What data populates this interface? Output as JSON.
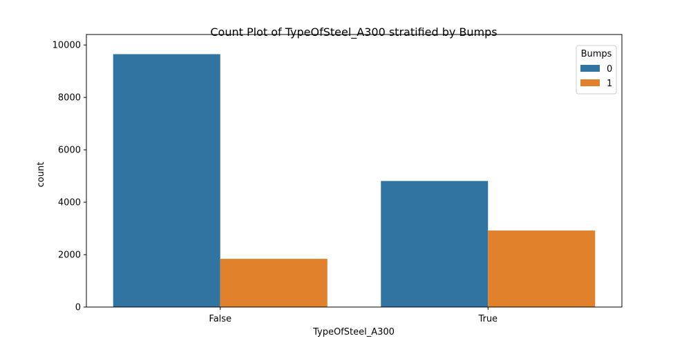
{
  "chart_data": {
    "type": "bar",
    "title": "Count Plot of TypeOfSteel_A300 stratified by Bumps",
    "xlabel": "TypeOfSteel_A300",
    "ylabel": "count",
    "categories": [
      "False",
      "True"
    ],
    "series": [
      {
        "name": "0",
        "values": [
          9650,
          4810
        ],
        "color": "#3274a1"
      },
      {
        "name": "1",
        "values": [
          1840,
          2920
        ],
        "color": "#e1812c"
      }
    ],
    "ylim": [
      0,
      10000
    ],
    "yticks": [
      0,
      2000,
      4000,
      6000,
      8000,
      10000
    ],
    "ytick_labels": [
      "0",
      "2000",
      "4000",
      "6000",
      "8000",
      "10000"
    ],
    "grid": false,
    "legend": {
      "title": "Bumps",
      "placement": "top-right"
    }
  }
}
